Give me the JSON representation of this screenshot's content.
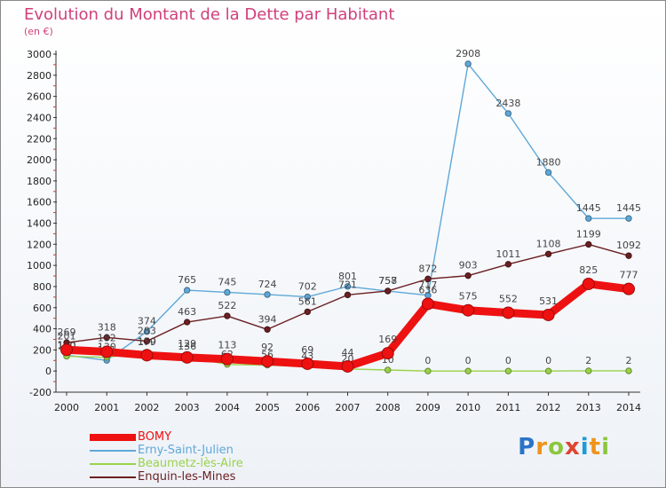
{
  "title": "Evolution du Montant de la Dette par Habitant",
  "unit": "(en €)",
  "brand": {
    "letters": [
      "P",
      "r",
      "o",
      "x",
      "i",
      "t",
      "i"
    ],
    "colors": [
      "#2a74c8",
      "#f0931b",
      "#8cc63f",
      "#e0452f",
      "#1f9bd7",
      "#f0931b",
      "#8cc63f"
    ]
  },
  "chart_data": {
    "type": "line",
    "x": [
      2000,
      2001,
      2002,
      2003,
      2004,
      2005,
      2006,
      2007,
      2008,
      2009,
      2010,
      2011,
      2012,
      2013,
      2014
    ],
    "ylim": [
      -200,
      3000
    ],
    "yticks": [
      -200,
      0,
      200,
      400,
      600,
      800,
      1000,
      1200,
      1400,
      1600,
      1800,
      2000,
      2200,
      2400,
      2600,
      2800,
      3000
    ],
    "grid": false,
    "legend_position": "bottom-left",
    "series": [
      {
        "name": "Erny-Saint-Julien",
        "color": "#5fa8d8",
        "values": [
          150,
          101,
          374,
          765,
          745,
          724,
          702,
          801,
          757,
          717,
          2908,
          2438,
          1880,
          1445,
          1445
        ]
      },
      {
        "name": "Beaumetz-lès-Aire",
        "color": "#9ad24a",
        "values": [
          140,
          130,
          179,
          136,
          62,
          56,
          43,
          20,
          10,
          0,
          0,
          0,
          0,
          2,
          2
        ]
      },
      {
        "name": "Enquin-les-Mines",
        "color": "#6b1f22",
        "values": [
          269,
          318,
          283,
          463,
          522,
          394,
          561,
          721,
          758,
          872,
          903,
          1011,
          1108,
          1199,
          1092
        ]
      },
      {
        "name": "BOMY",
        "color": "#ee1111",
        "values": [
          201,
          182,
          150,
          129,
          113,
          92,
          69,
          44,
          169,
          636,
          575,
          552,
          531,
          825,
          777
        ]
      }
    ]
  }
}
